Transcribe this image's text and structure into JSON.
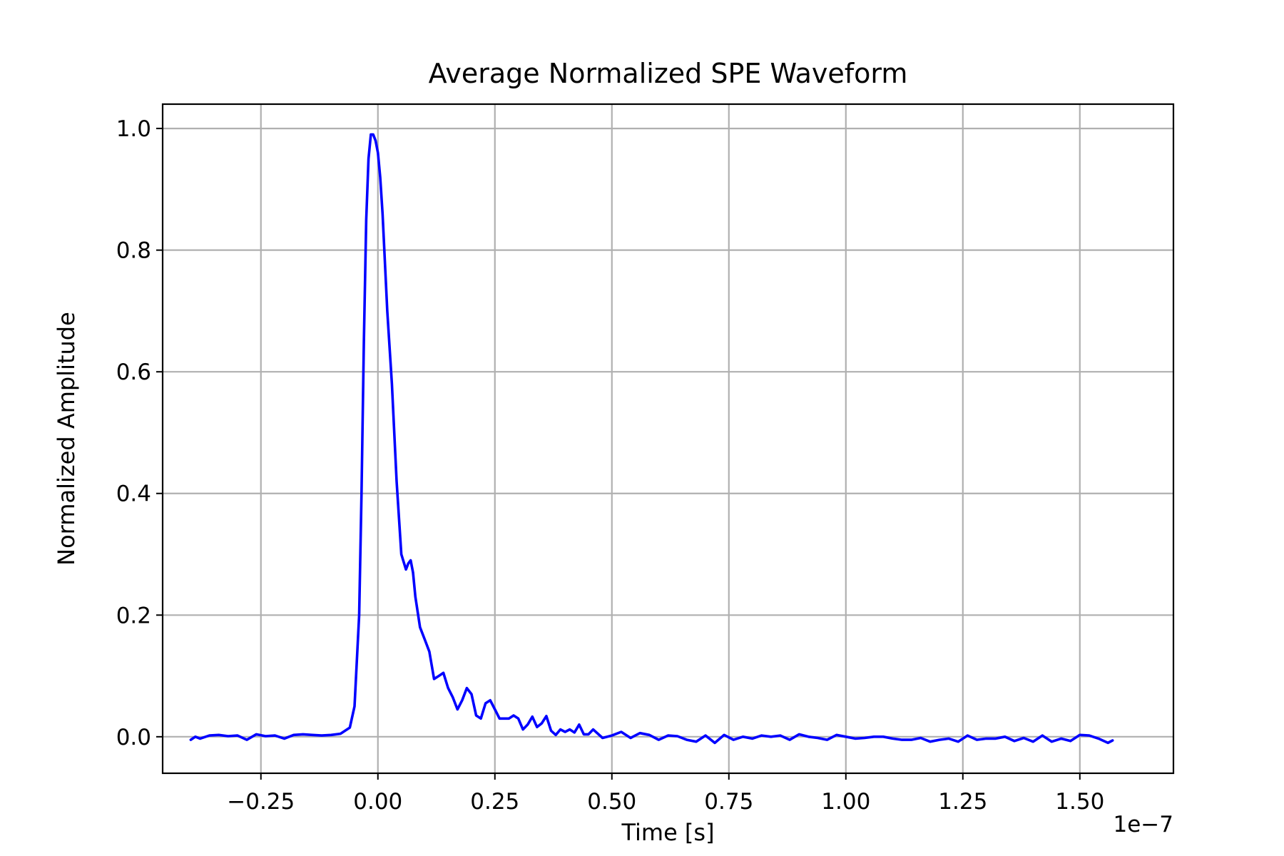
{
  "chart_data": {
    "type": "line",
    "title": "Average Normalized SPE Waveform",
    "xlabel": "Time [s]",
    "ylabel": "Normalized Amplitude",
    "x_offset_label": "1e−7",
    "xlim": [
      -0.46,
      1.7
    ],
    "ylim": [
      -0.06,
      1.04
    ],
    "grid": true,
    "x_ticks": [
      -0.25,
      0.0,
      0.25,
      0.5,
      0.75,
      1.0,
      1.25,
      1.5
    ],
    "x_tick_labels": [
      "−0.25",
      "0.00",
      "0.25",
      "0.50",
      "0.75",
      "1.00",
      "1.25",
      "1.50"
    ],
    "y_ticks": [
      0.0,
      0.2,
      0.4,
      0.6,
      0.8,
      1.0
    ],
    "y_tick_labels": [
      "0.0",
      "0.2",
      "0.4",
      "0.6",
      "0.8",
      "1.0"
    ],
    "line_color": "#0000ff",
    "series": [
      {
        "x": [
          -0.4,
          -0.39,
          -0.38,
          -0.36,
          -0.34,
          -0.32,
          -0.3,
          -0.28,
          -0.26,
          -0.24,
          -0.22,
          -0.2,
          -0.18,
          -0.16,
          -0.14,
          -0.12,
          -0.1,
          -0.08,
          -0.06,
          -0.05,
          -0.04,
          -0.035,
          -0.03,
          -0.025,
          -0.02,
          -0.015,
          -0.01,
          -0.005,
          0.0,
          0.005,
          0.01,
          0.02,
          0.03,
          0.04,
          0.05,
          0.06,
          0.065,
          0.07,
          0.075,
          0.08,
          0.09,
          0.1,
          0.11,
          0.12,
          0.13,
          0.14,
          0.15,
          0.16,
          0.17,
          0.18,
          0.19,
          0.2,
          0.21,
          0.22,
          0.23,
          0.24,
          0.25,
          0.26,
          0.27,
          0.28,
          0.29,
          0.3,
          0.31,
          0.32,
          0.33,
          0.34,
          0.35,
          0.36,
          0.37,
          0.38,
          0.39,
          0.4,
          0.41,
          0.42,
          0.43,
          0.44,
          0.45,
          0.46,
          0.48,
          0.5,
          0.52,
          0.54,
          0.56,
          0.58,
          0.6,
          0.62,
          0.64,
          0.66,
          0.68,
          0.7,
          0.72,
          0.74,
          0.76,
          0.78,
          0.8,
          0.82,
          0.84,
          0.86,
          0.88,
          0.9,
          0.92,
          0.94,
          0.96,
          0.98,
          1.0,
          1.02,
          1.04,
          1.06,
          1.08,
          1.1,
          1.12,
          1.14,
          1.16,
          1.18,
          1.2,
          1.22,
          1.24,
          1.26,
          1.28,
          1.3,
          1.32,
          1.34,
          1.36,
          1.38,
          1.4,
          1.42,
          1.44,
          1.46,
          1.48,
          1.5,
          1.52,
          1.54,
          1.56,
          1.57
        ],
        "y": [
          -0.005,
          0.0,
          -0.003,
          0.002,
          0.003,
          0.001,
          0.002,
          -0.005,
          0.004,
          0.001,
          0.002,
          -0.003,
          0.003,
          0.004,
          0.003,
          0.002,
          0.003,
          0.005,
          0.015,
          0.05,
          0.2,
          0.4,
          0.65,
          0.85,
          0.95,
          0.99,
          0.99,
          0.98,
          0.96,
          0.92,
          0.86,
          0.7,
          0.58,
          0.42,
          0.3,
          0.275,
          0.285,
          0.29,
          0.27,
          0.23,
          0.18,
          0.16,
          0.14,
          0.095,
          0.1,
          0.105,
          0.08,
          0.065,
          0.045,
          0.06,
          0.08,
          0.07,
          0.035,
          0.03,
          0.055,
          0.06,
          0.045,
          0.03,
          0.03,
          0.03,
          0.035,
          0.03,
          0.012,
          0.02,
          0.033,
          0.016,
          0.022,
          0.034,
          0.01,
          0.003,
          0.012,
          0.008,
          0.012,
          0.007,
          0.02,
          0.004,
          0.004,
          0.012,
          -0.002,
          0.002,
          0.008,
          -0.002,
          0.006,
          0.003,
          -0.005,
          0.002,
          0.001,
          -0.005,
          -0.008,
          0.002,
          -0.01,
          0.003,
          -0.005,
          0.0,
          -0.003,
          0.002,
          0.0,
          0.002,
          -0.005,
          0.004,
          0.0,
          -0.002,
          -0.005,
          0.003,
          0.0,
          -0.003,
          -0.002,
          0.0,
          0.0,
          -0.003,
          -0.005,
          -0.005,
          -0.002,
          -0.008,
          -0.005,
          -0.003,
          -0.008,
          0.002,
          -0.005,
          -0.003,
          -0.003,
          0.0,
          -0.007,
          -0.002,
          -0.008,
          0.002,
          -0.008,
          -0.003,
          -0.007,
          0.003,
          0.002,
          -0.003,
          -0.01,
          -0.006
        ]
      }
    ]
  }
}
